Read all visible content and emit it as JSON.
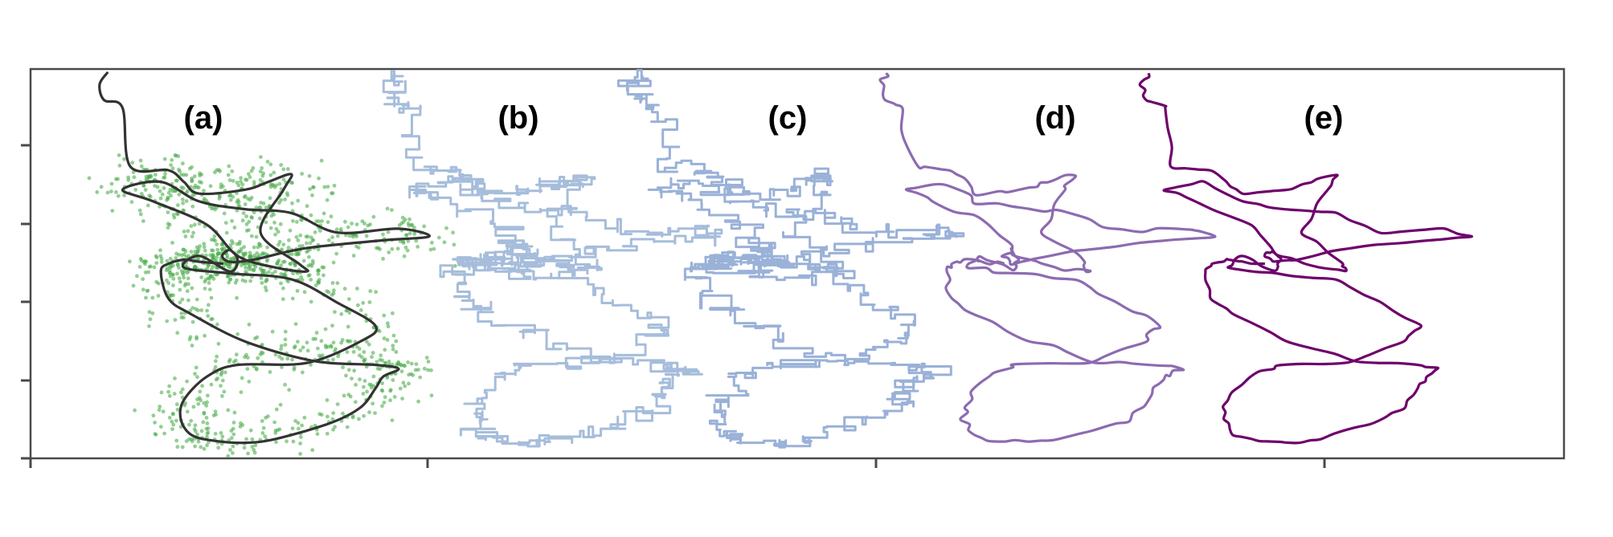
{
  "chart_data": {
    "type": "line",
    "title": "",
    "xlabel": "",
    "ylabel": "",
    "grid": false,
    "legend": "none",
    "xlim": [
      0,
      100
    ],
    "ylim": [
      0,
      100
    ],
    "xticks": [],
    "yticks": [],
    "panels": [
      {
        "label": "(a)",
        "offset": 0,
        "color": "#333333",
        "scatter_color": "#4cae4c",
        "scatter": true
      },
      {
        "label": "(b)",
        "offset": 19,
        "color": "#a6bddb",
        "scatter": false,
        "jitter": 1
      },
      {
        "label": "(c)",
        "offset": 35,
        "color": "#9ab1d8",
        "scatter": false,
        "jitter": 1
      },
      {
        "label": "(d)",
        "offset": 51,
        "color": "#8c6bb1",
        "scatter": false,
        "jitter": 0.6
      },
      {
        "label": "(e)",
        "offset": 68,
        "color": "#6e016b",
        "scatter": false,
        "jitter": 0.3
      }
    ],
    "track": {
      "x": [
        5.0,
        4.5,
        4.8,
        6.0,
        6.5,
        9.0,
        10.0,
        11.0,
        14.0,
        15.5,
        17.0,
        16.5,
        15.0,
        17.5,
        18.0,
        16.0,
        13.5,
        11.5,
        8.0,
        6.0,
        8.5,
        11.0,
        14.0,
        17.0,
        20.0,
        24.0,
        26.0,
        23.0,
        18.0,
        14.5,
        13.0,
        12.5,
        13.0,
        13.5,
        13.0,
        11.0,
        10.0,
        13.0,
        17.0,
        20.0,
        22.5,
        21.5,
        18.0,
        13.5,
        11.5,
        10.0,
        9.8,
        10.5,
        12.0,
        14.0,
        16.0,
        19.5,
        21.5,
        22.5,
        23.0,
        24.0,
        22.5,
        18.5,
        14.0,
        10.5,
        9.0,
        8.5,
        9.0,
        10.0,
        11.0,
        12.5
      ],
      "y": [
        99.0,
        96.0,
        92.0,
        90.0,
        75.0,
        74.0,
        71.0,
        68.0,
        69.0,
        71.0,
        73.0,
        69.0,
        58.0,
        50.0,
        48.0,
        49.0,
        52.0,
        60.0,
        66.0,
        69.0,
        71.0,
        66.0,
        64.0,
        63.0,
        58.0,
        59.0,
        57.0,
        56.0,
        54.0,
        51.0,
        50.5,
        52.0,
        53.5,
        51.0,
        48.0,
        52.0,
        49.0,
        47.5,
        46.0,
        40.0,
        34.0,
        30.0,
        24.5,
        24.0,
        21.0,
        15.0,
        10.0,
        6.0,
        4.5,
        4.0,
        5.0,
        9.0,
        13.0,
        18.0,
        21.0,
        23.0,
        24.0,
        25.0,
        30.0,
        37.0,
        41.0,
        48.0,
        50.0,
        51.0,
        50.5,
        50.0
      ]
    }
  }
}
